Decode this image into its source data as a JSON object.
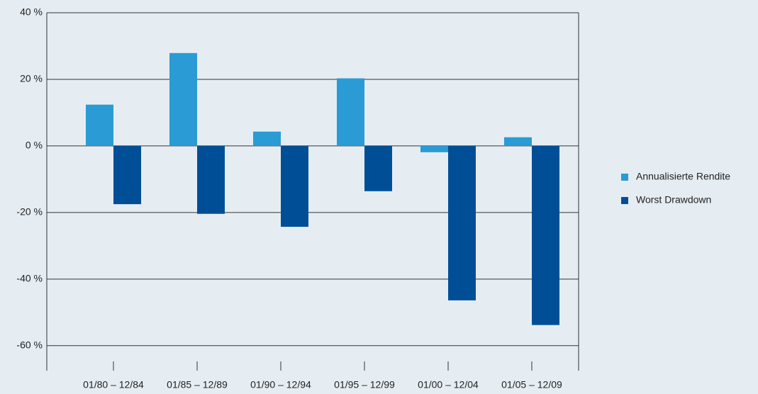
{
  "chart_data": {
    "type": "bar",
    "categories": [
      "01/80 – 12/84",
      "01/85 – 12/89",
      "01/90 – 12/94",
      "01/95 – 12/99",
      "01/00 – 12/04",
      "01/05 – 12/09"
    ],
    "series": [
      {
        "name": "Annualisierte Rendite",
        "color": "#2a9bd4",
        "values": [
          12.4,
          27.9,
          4.3,
          20.3,
          -1.9,
          2.6
        ]
      },
      {
        "name": "Worst Drawdown",
        "color": "#004f96",
        "values": [
          -17.5,
          -20.4,
          -24.3,
          -13.6,
          -46.4,
          -53.8
        ]
      }
    ],
    "ylim": [
      -67.5,
      40
    ],
    "yticks": [
      {
        "value": -60,
        "label": "-60 %"
      },
      {
        "value": -40,
        "label": "-40 %"
      },
      {
        "value": -20,
        "label": "-20 %"
      },
      {
        "value": 0,
        "label": "0 %"
      },
      {
        "value": 20,
        "label": "20 %"
      },
      {
        "value": 40,
        "label": "40 %"
      }
    ],
    "grid": true,
    "legend": "right"
  }
}
